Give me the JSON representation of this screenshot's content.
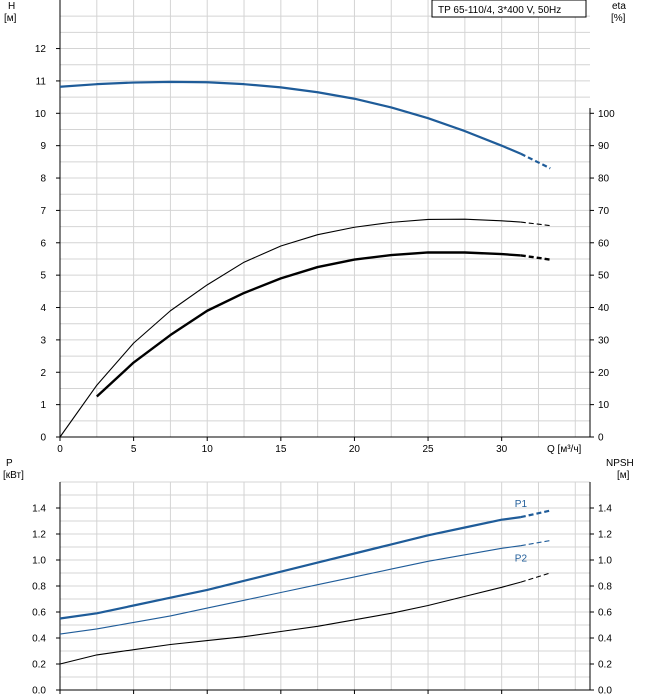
{
  "chart_data": [
    {
      "type": "line",
      "title": "TP 65-110/4, 3*400 V, 50Hz",
      "xlabel": "Q [м³/ч]",
      "ylabel_left": "H",
      "ylabel_left_unit": "[м]",
      "ylabel_right": "eta",
      "ylabel_right_unit": "[%]",
      "xlim": [
        0,
        36
      ],
      "ylim_left": [
        0,
        13.5
      ],
      "ylim_right": [
        0,
        135
      ],
      "x_ticks": [
        0,
        5,
        10,
        15,
        20,
        25,
        30
      ],
      "y_ticks_left": [
        0,
        1,
        2,
        3,
        4,
        5,
        6,
        7,
        8,
        9,
        10,
        11,
        12
      ],
      "y_ticks_right": [
        0,
        10,
        20,
        30,
        40,
        50,
        60,
        70,
        80,
        90,
        100
      ],
      "grid": true,
      "series": [
        {
          "axis": "left",
          "color": "#1f5c99",
          "x": [
            0,
            2.5,
            5,
            7.5,
            10,
            12.5,
            15,
            17.5,
            20,
            22.5,
            25,
            27.5,
            30,
            31.3
          ],
          "values": [
            10.82,
            10.9,
            10.95,
            10.97,
            10.96,
            10.9,
            10.8,
            10.65,
            10.45,
            10.18,
            9.85,
            9.45,
            9.0,
            8.75
          ],
          "dashed_x": [
            31.3,
            33.3
          ],
          "dashed_values": [
            8.75,
            8.3
          ]
        },
        {
          "axis": "right",
          "color": "#000000",
          "x": [
            0,
            2.5,
            5,
            7.5,
            10,
            12.5,
            15,
            17.5,
            20,
            22.5,
            25,
            27.5,
            30,
            31.3
          ],
          "values": [
            0,
            16,
            29,
            39,
            47,
            54,
            59,
            62.5,
            64.8,
            66.3,
            67.2,
            67.3,
            66.8,
            66.4
          ],
          "dashed_x": [
            31.3,
            33.3
          ],
          "dashed_values": [
            66.4,
            65.3
          ]
        },
        {
          "axis": "right",
          "color": "#000000",
          "thick": true,
          "x": [
            2.5,
            5,
            7.5,
            10,
            12.5,
            15,
            17.5,
            20,
            22.5,
            25,
            27.5,
            30,
            31.3
          ],
          "values": [
            12.5,
            23,
            31.5,
            39,
            44.5,
            49,
            52.5,
            54.8,
            56.2,
            57.0,
            57.0,
            56.5,
            56.1
          ],
          "dashed_x": [
            31.3,
            33.3
          ],
          "dashed_values": [
            56.1,
            54.8
          ]
        }
      ]
    },
    {
      "type": "line",
      "xlabel": "",
      "ylabel_left": "P",
      "ylabel_left_unit": "[кВт]",
      "ylabel_right": "NPSH",
      "ylabel_right_unit": "[м]",
      "xlim": [
        0,
        36
      ],
      "ylim_left": [
        0,
        1.6
      ],
      "ylim_right": [
        0,
        1.6
      ],
      "y_ticks_left": [
        "0.0",
        "0.2",
        "0.4",
        "0.6",
        "0.8",
        "1.0",
        "1.2",
        "1.4"
      ],
      "y_ticks_right": [
        "0.0",
        "0.2",
        "0.4",
        "0.6",
        "0.8",
        "1.0",
        "1.2",
        "1.4"
      ],
      "grid": true,
      "series": [
        {
          "name": "P1",
          "axis": "left",
          "color": "#1f5c99",
          "x": [
            0,
            2.5,
            5,
            7.5,
            10,
            12.5,
            15,
            17.5,
            20,
            22.5,
            25,
            27.5,
            30,
            31.3
          ],
          "values": [
            0.55,
            0.59,
            0.65,
            0.71,
            0.77,
            0.84,
            0.91,
            0.98,
            1.05,
            1.12,
            1.19,
            1.25,
            1.31,
            1.33
          ],
          "dashed_x": [
            31.3,
            33.3
          ],
          "dashed_values": [
            1.33,
            1.38
          ]
        },
        {
          "name": "P2",
          "axis": "left",
          "color": "#1f5c99",
          "thin": true,
          "x": [
            0,
            2.5,
            5,
            7.5,
            10,
            12.5,
            15,
            17.5,
            20,
            22.5,
            25,
            27.5,
            30,
            31.3
          ],
          "values": [
            0.43,
            0.47,
            0.52,
            0.57,
            0.63,
            0.69,
            0.75,
            0.81,
            0.87,
            0.93,
            0.99,
            1.04,
            1.09,
            1.11
          ],
          "dashed_x": [
            31.3,
            33.3
          ],
          "dashed_values": [
            1.11,
            1.15
          ]
        },
        {
          "axis": "right",
          "color": "#000000",
          "x": [
            0,
            2.5,
            5,
            7.5,
            10,
            12.5,
            15,
            17.5,
            20,
            22.5,
            25,
            27.5,
            30,
            31.3
          ],
          "values": [
            0.2,
            0.27,
            0.31,
            0.35,
            0.38,
            0.41,
            0.45,
            0.49,
            0.54,
            0.59,
            0.65,
            0.72,
            0.79,
            0.83
          ],
          "dashed_x": [
            31.3,
            33.3
          ],
          "dashed_values": [
            0.83,
            0.9
          ]
        }
      ]
    }
  ]
}
